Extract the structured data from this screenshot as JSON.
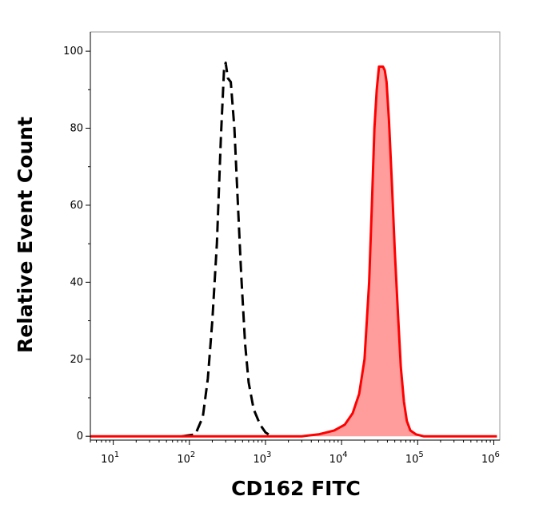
{
  "chart_data": {
    "type": "area",
    "xlabel": "CD162 FITC",
    "ylabel": "Relative Event Count",
    "x_scale": "log",
    "xlim": [
      5,
      1200000
    ],
    "ylim": [
      -1,
      105
    ],
    "x_ticks": [
      {
        "value": 10,
        "base": "10",
        "exp": "1"
      },
      {
        "value": 100,
        "base": "10",
        "exp": "2"
      },
      {
        "value": 1000,
        "base": "10",
        "exp": "3"
      },
      {
        "value": 10000,
        "base": "10",
        "exp": "4"
      },
      {
        "value": 100000,
        "base": "10",
        "exp": "5"
      },
      {
        "value": 1000000,
        "base": "10",
        "exp": "6"
      }
    ],
    "y_ticks": [
      {
        "value": 0,
        "label": "0"
      },
      {
        "value": 20,
        "label": "20"
      },
      {
        "value": 40,
        "label": "40"
      },
      {
        "value": 60,
        "label": "60"
      },
      {
        "value": 80,
        "label": "80"
      },
      {
        "value": 100,
        "label": "100"
      }
    ],
    "grid": false,
    "series": [
      {
        "style": "dashed-outline",
        "color": "#000000",
        "points": [
          [
            80,
            0
          ],
          [
            120,
            0.5
          ],
          [
            150,
            5
          ],
          [
            175,
            15
          ],
          [
            200,
            30
          ],
          [
            230,
            50
          ],
          [
            260,
            78
          ],
          [
            285,
            95
          ],
          [
            300,
            97
          ],
          [
            320,
            93
          ],
          [
            350,
            92
          ],
          [
            390,
            80
          ],
          [
            430,
            62
          ],
          [
            480,
            42
          ],
          [
            540,
            24
          ],
          [
            600,
            14
          ],
          [
            700,
            7
          ],
          [
            850,
            3
          ],
          [
            1000,
            1
          ],
          [
            1200,
            0
          ]
        ]
      },
      {
        "style": "filled",
        "color": "#ff0000",
        "fill": "#ff9c9c",
        "points": [
          [
            5,
            0
          ],
          [
            3000,
            0
          ],
          [
            5000,
            0.5
          ],
          [
            8000,
            1.5
          ],
          [
            11000,
            3
          ],
          [
            14000,
            6
          ],
          [
            17000,
            11
          ],
          [
            20000,
            20
          ],
          [
            23000,
            40
          ],
          [
            25000,
            60
          ],
          [
            27000,
            80
          ],
          [
            29000,
            90
          ],
          [
            31000,
            96
          ],
          [
            33000,
            96
          ],
          [
            35000,
            96
          ],
          [
            37000,
            95
          ],
          [
            39000,
            92
          ],
          [
            42000,
            82
          ],
          [
            46000,
            65
          ],
          [
            50000,
            48
          ],
          [
            55000,
            32
          ],
          [
            60000,
            18
          ],
          [
            66000,
            9
          ],
          [
            72000,
            4
          ],
          [
            80000,
            1.5
          ],
          [
            95000,
            0.5
          ],
          [
            120000,
            0
          ],
          [
            1100000,
            0
          ]
        ]
      }
    ]
  }
}
